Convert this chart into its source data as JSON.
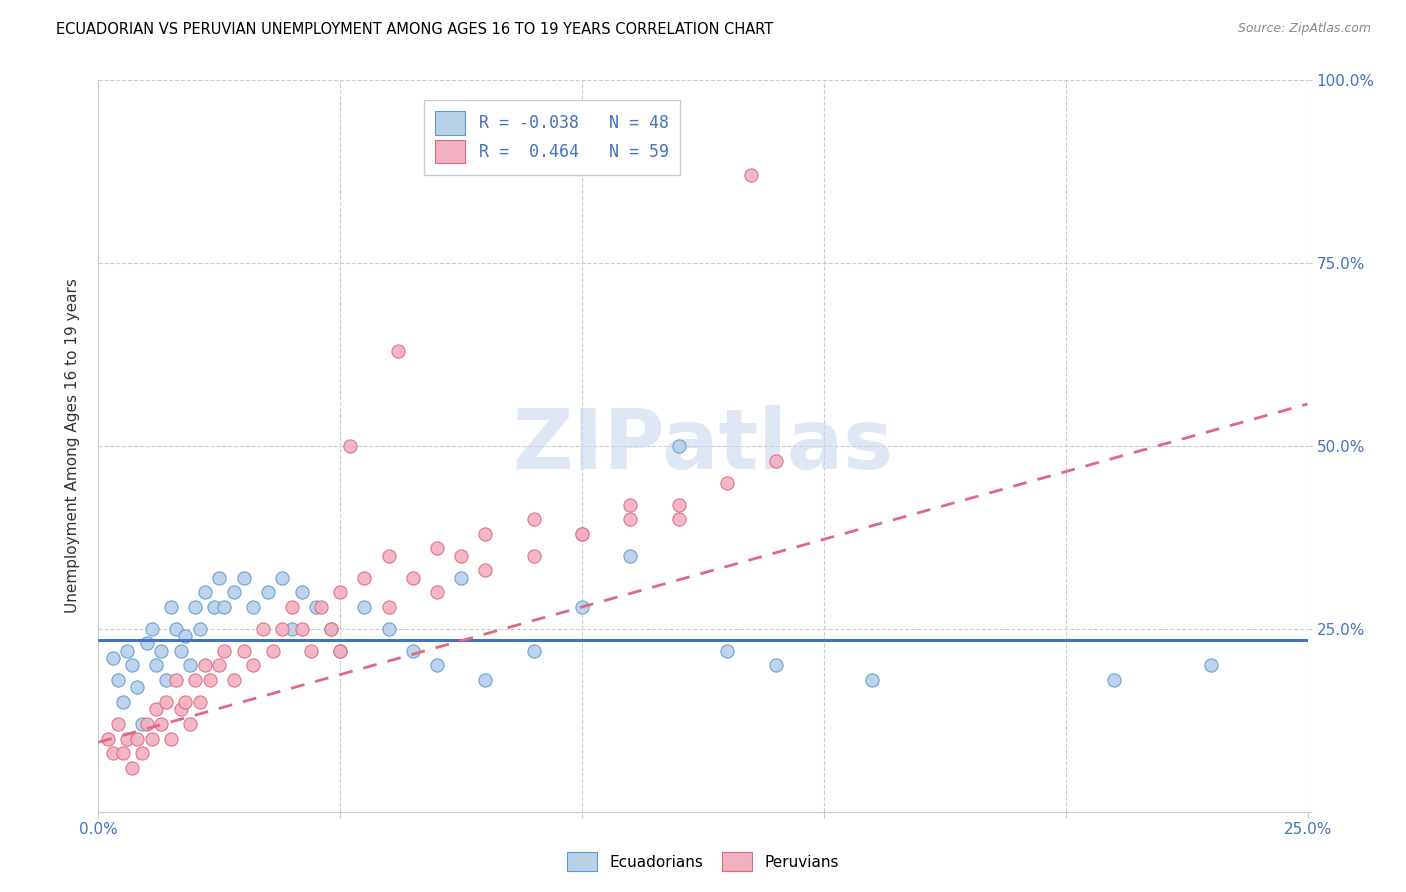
{
  "title": "ECUADORIAN VS PERUVIAN UNEMPLOYMENT AMONG AGES 16 TO 19 YEARS CORRELATION CHART",
  "source": "Source: ZipAtlas.com",
  "ylabel": "Unemployment Among Ages 16 to 19 years",
  "xlim": [
    0.0,
    0.25
  ],
  "ylim": [
    0.0,
    1.0
  ],
  "legend_r_blue": "-0.038",
  "legend_n_blue": "48",
  "legend_r_pink": " 0.464",
  "legend_n_pink": "59",
  "blue_face": "#b8d0e8",
  "blue_edge": "#5b9bd5",
  "pink_face": "#f2b0c0",
  "pink_edge": "#e06880",
  "blue_line": "#4472c4",
  "pink_line": "#e06880",
  "blue_trend_slope": 0.0,
  "blue_trend_intercept": 0.235,
  "pink_trend_slope": 1.85,
  "pink_trend_intercept": 0.095,
  "ecuadorians_x": [
    0.003,
    0.004,
    0.005,
    0.006,
    0.007,
    0.008,
    0.009,
    0.01,
    0.011,
    0.012,
    0.013,
    0.014,
    0.015,
    0.016,
    0.017,
    0.018,
    0.019,
    0.02,
    0.021,
    0.022,
    0.024,
    0.025,
    0.026,
    0.028,
    0.03,
    0.032,
    0.035,
    0.038,
    0.04,
    0.042,
    0.045,
    0.048,
    0.05,
    0.055,
    0.06,
    0.065,
    0.07,
    0.075,
    0.08,
    0.09,
    0.1,
    0.11,
    0.12,
    0.13,
    0.14,
    0.16,
    0.21,
    0.23
  ],
  "ecuadorians_y": [
    0.21,
    0.18,
    0.15,
    0.22,
    0.2,
    0.17,
    0.12,
    0.23,
    0.25,
    0.2,
    0.22,
    0.18,
    0.28,
    0.25,
    0.22,
    0.24,
    0.2,
    0.28,
    0.25,
    0.3,
    0.28,
    0.32,
    0.28,
    0.3,
    0.32,
    0.28,
    0.3,
    0.32,
    0.25,
    0.3,
    0.28,
    0.25,
    0.22,
    0.28,
    0.25,
    0.22,
    0.2,
    0.32,
    0.18,
    0.22,
    0.28,
    0.35,
    0.5,
    0.22,
    0.2,
    0.18,
    0.18,
    0.2
  ],
  "peruvians_x": [
    0.002,
    0.003,
    0.004,
    0.005,
    0.006,
    0.007,
    0.008,
    0.009,
    0.01,
    0.011,
    0.012,
    0.013,
    0.014,
    0.015,
    0.016,
    0.017,
    0.018,
    0.019,
    0.02,
    0.021,
    0.022,
    0.023,
    0.025,
    0.026,
    0.028,
    0.03,
    0.032,
    0.034,
    0.036,
    0.038,
    0.04,
    0.042,
    0.044,
    0.046,
    0.048,
    0.05,
    0.055,
    0.06,
    0.065,
    0.07,
    0.075,
    0.08,
    0.09,
    0.1,
    0.11,
    0.12,
    0.13,
    0.14,
    0.05,
    0.06,
    0.07,
    0.08,
    0.09,
    0.1,
    0.11,
    0.12,
    0.052,
    0.062,
    0.135
  ],
  "peruvians_y": [
    0.1,
    0.08,
    0.12,
    0.08,
    0.1,
    0.06,
    0.1,
    0.08,
    0.12,
    0.1,
    0.14,
    0.12,
    0.15,
    0.1,
    0.18,
    0.14,
    0.15,
    0.12,
    0.18,
    0.15,
    0.2,
    0.18,
    0.2,
    0.22,
    0.18,
    0.22,
    0.2,
    0.25,
    0.22,
    0.25,
    0.28,
    0.25,
    0.22,
    0.28,
    0.25,
    0.3,
    0.32,
    0.35,
    0.32,
    0.36,
    0.35,
    0.38,
    0.4,
    0.38,
    0.42,
    0.4,
    0.45,
    0.48,
    0.22,
    0.28,
    0.3,
    0.33,
    0.35,
    0.38,
    0.4,
    0.42,
    0.5,
    0.63,
    0.87
  ]
}
